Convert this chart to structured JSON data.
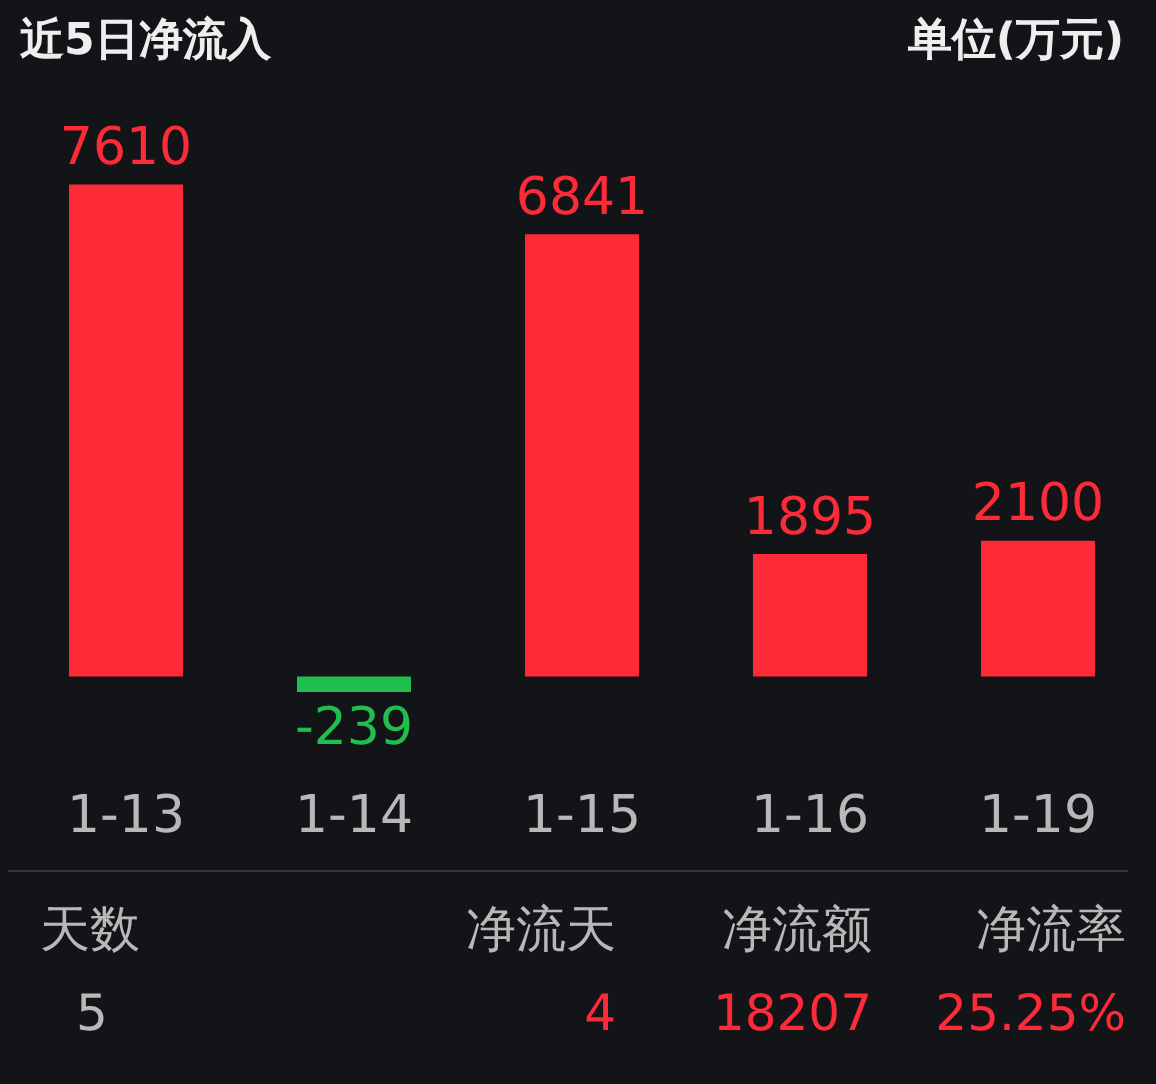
{
  "chart_data": {
    "type": "bar",
    "title": "近5日净流入",
    "categories": [
      "1-13",
      "1-14",
      "1-15",
      "1-16",
      "1-19"
    ],
    "values": [
      7610,
      -239,
      6841,
      1895,
      2100
    ],
    "colors": [
      "#fd2a37",
      "#1fbe4f",
      "#fd2a37",
      "#fd2a37",
      "#fd2a37"
    ],
    "data_labels": true,
    "tick_labels": "x",
    "annotations": [
      "单位(万元)",
      "天数",
      "净流天",
      "净流额",
      "净流率",
      "5",
      "4",
      "18207",
      "25.25%"
    ]
  }
}
